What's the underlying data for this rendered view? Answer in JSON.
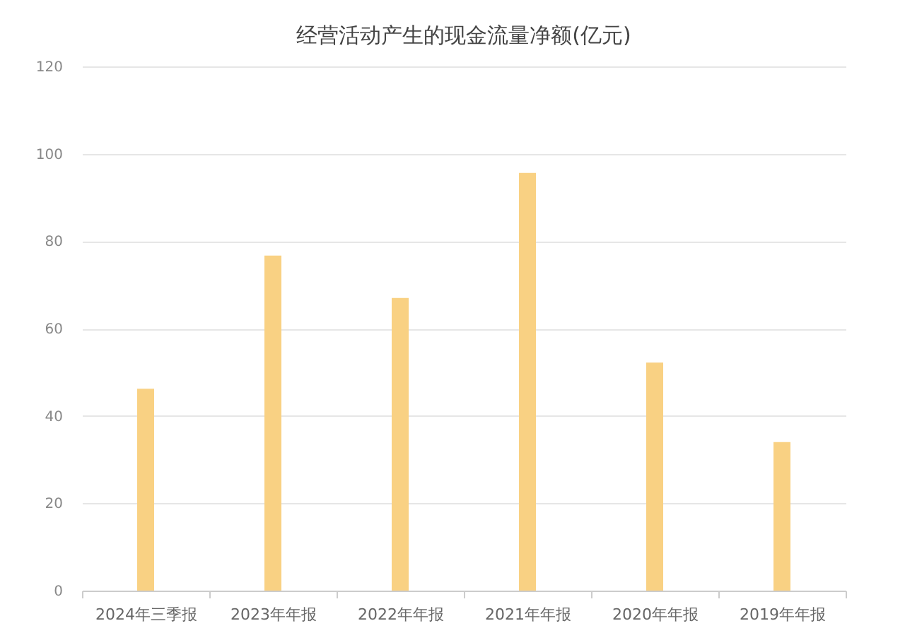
{
  "chart_data": {
    "type": "bar",
    "title": "经营活动产生的现金流量净额(亿元)",
    "categories": [
      "2024年三季报",
      "2023年年报",
      "2022年年报",
      "2021年年报",
      "2020年年报",
      "2019年年报"
    ],
    "values": [
      46.2,
      76.7,
      67.0,
      95.6,
      52.2,
      34.0
    ],
    "color": "#f9d183",
    "ylim": [
      0,
      120
    ],
    "yticks": [
      0,
      20,
      40,
      60,
      80,
      100,
      120
    ],
    "grid": "y"
  }
}
